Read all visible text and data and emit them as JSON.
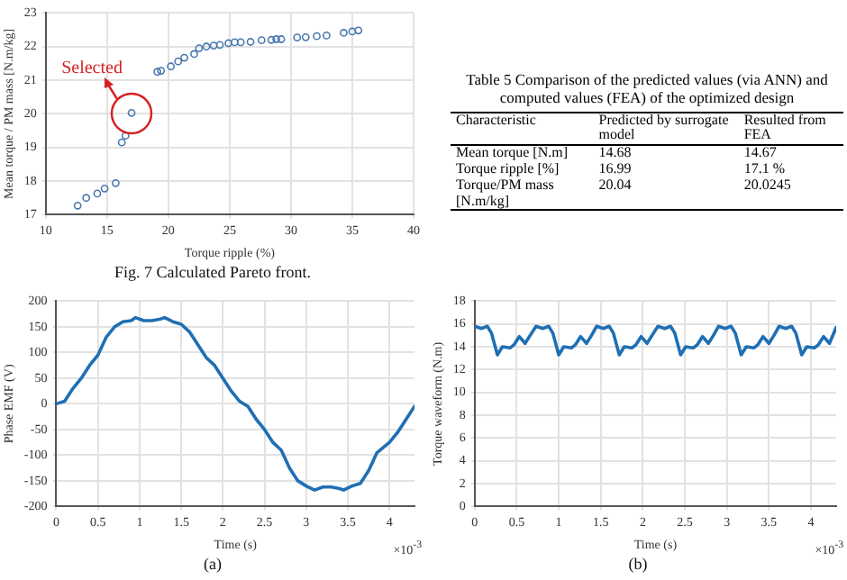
{
  "chart_data": [
    {
      "type": "scatter",
      "xlabel": "Torque ripple (%)",
      "ylabel": "Mean torque / PM mass [N.m/kg]",
      "xlim": [
        10,
        40
      ],
      "xticks": [
        10,
        15,
        20,
        25,
        30,
        35,
        40
      ],
      "ylim": [
        17,
        23
      ],
      "yticks": [
        17,
        18,
        19,
        20,
        21,
        22,
        23
      ],
      "grid": true,
      "marker": "circle",
      "x": [
        12.6,
        13.3,
        14.2,
        14.8,
        15.7,
        16.2,
        16.5,
        17.0,
        19.1,
        19.4,
        20.2,
        20.8,
        21.3,
        22.1,
        22.5,
        23.1,
        23.7,
        24.2,
        24.9,
        25.4,
        25.9,
        26.7,
        27.6,
        28.4,
        28.8,
        29.2,
        30.5,
        31.2,
        32.1,
        32.9,
        34.3,
        35.0,
        35.5
      ],
      "series": [
        {
          "color": "#4a78b0",
          "values": [
            17.27,
            17.5,
            17.63,
            17.78,
            17.94,
            19.15,
            19.35,
            20.03,
            21.25,
            21.28,
            21.41,
            21.56,
            21.67,
            21.78,
            21.95,
            22.0,
            22.03,
            22.05,
            22.1,
            22.13,
            22.13,
            22.14,
            22.19,
            22.2,
            22.22,
            22.22,
            22.27,
            22.28,
            22.31,
            22.33,
            22.41,
            22.45,
            22.48
          ]
        }
      ],
      "annotations": [
        {
          "text": "Selected",
          "x": 17.0,
          "y": 20.03
        },
        "Fig. 7 Calculated Pareto front."
      ]
    },
    {
      "type": "other",
      "title": "Table 5 Comparison of the predicted values (via ANN) and computed values (FEA) of the optimized design",
      "annotations": [
        "Characteristic",
        "Predicted by surrogate model",
        "Resulted from FEA",
        "Mean torque [N.m]",
        "14.68",
        "14.67",
        "Torque ripple [%]",
        "16.99",
        "17.1 %",
        "Torque/PM mass [N.m/kg]",
        "20.04",
        "20.0245"
      ]
    },
    {
      "type": "line",
      "xlabel": "Time (s)",
      "ylabel": "Phase EMF (V)",
      "xlim": [
        0,
        4.3
      ],
      "xticks": [
        0,
        0.5,
        1,
        1.5,
        2,
        2.5,
        3,
        3.5,
        4
      ],
      "ylim": [
        -200,
        200
      ],
      "yticks": [
        -200,
        -150,
        -100,
        -50,
        0,
        50,
        100,
        150,
        200
      ],
      "grid": true,
      "marker": "none",
      "line_style": "solid",
      "x": [
        0,
        0.1,
        0.2,
        0.3,
        0.4,
        0.5,
        0.6,
        0.7,
        0.8,
        0.9,
        0.95,
        1.05,
        1.15,
        1.25,
        1.3,
        1.4,
        1.5,
        1.6,
        1.7,
        1.8,
        1.9,
        2.0,
        2.1,
        2.2,
        2.3,
        2.4,
        2.5,
        2.6,
        2.7,
        2.8,
        2.9,
        3.0,
        3.1,
        3.2,
        3.3,
        3.4,
        3.45,
        3.55,
        3.65,
        3.75,
        3.85,
        4.0,
        4.1,
        4.2,
        4.3
      ],
      "series": [
        {
          "color": "#1f6fb4",
          "values": [
            0,
            5,
            30,
            50,
            75,
            95,
            130,
            150,
            160,
            162,
            168,
            162,
            162,
            165,
            168,
            160,
            155,
            140,
            115,
            90,
            75,
            50,
            25,
            5,
            -5,
            -30,
            -50,
            -75,
            -90,
            -125,
            -150,
            -160,
            -168,
            -162,
            -162,
            -165,
            -168,
            -160,
            -155,
            -130,
            -95,
            -75,
            -55,
            -30,
            -5
          ]
        }
      ],
      "annotations": [
        "×10$^{-3}$",
        "(a)"
      ]
    },
    {
      "type": "line",
      "xlabel": "Time (s)",
      "ylabel": "Torque waveform (N.m)",
      "xlim": [
        0,
        4.3
      ],
      "xticks": [
        0,
        0.5,
        1,
        1.5,
        2,
        2.5,
        3,
        3.5,
        4
      ],
      "ylim": [
        0,
        18
      ],
      "yticks": [
        0,
        2,
        4,
        6,
        8,
        10,
        12,
        14,
        16,
        18
      ],
      "grid": true,
      "marker": "none",
      "line_style": "solid",
      "x": [
        0,
        0.08,
        0.15,
        0.2,
        0.27,
        0.33,
        0.42,
        0.47,
        0.53,
        0.6,
        0.66,
        0.73,
        0.81,
        0.88,
        0.93,
        1.0,
        1.06,
        1.15,
        1.2,
        1.26,
        1.33,
        1.39,
        1.45,
        1.53,
        1.6,
        1.65,
        1.72,
        1.78,
        1.87,
        1.92,
        1.98,
        2.05,
        2.11,
        2.18,
        2.26,
        2.33,
        2.38,
        2.45,
        2.51,
        2.6,
        2.65,
        2.71,
        2.78,
        2.84,
        2.9,
        2.98,
        3.05,
        3.1,
        3.17,
        3.23,
        3.32,
        3.37,
        3.43,
        3.5,
        3.56,
        3.62,
        3.7,
        3.77,
        3.82,
        3.89,
        3.95,
        4.04,
        4.09,
        4.15,
        4.22,
        4.3
      ],
      "series": [
        {
          "color": "#1f6fb4",
          "values": [
            15.8,
            15.6,
            15.8,
            15.2,
            13.3,
            14.0,
            13.9,
            14.2,
            14.9,
            14.3,
            15.0,
            15.8,
            15.6,
            15.8,
            15.2,
            13.3,
            14.0,
            13.9,
            14.2,
            14.9,
            14.3,
            15.0,
            15.8,
            15.6,
            15.8,
            15.2,
            13.3,
            14.0,
            13.9,
            14.2,
            14.9,
            14.3,
            15.0,
            15.8,
            15.6,
            15.8,
            15.2,
            13.3,
            14.0,
            13.9,
            14.2,
            14.9,
            14.3,
            15.0,
            15.8,
            15.6,
            15.8,
            15.2,
            13.3,
            14.0,
            13.9,
            14.2,
            14.9,
            14.3,
            15.0,
            15.8,
            15.6,
            15.8,
            15.2,
            13.3,
            14.0,
            13.9,
            14.2,
            14.9,
            14.3,
            15.7
          ]
        }
      ],
      "annotations": [
        "×10$^{-3}$",
        "(b)"
      ]
    }
  ]
}
